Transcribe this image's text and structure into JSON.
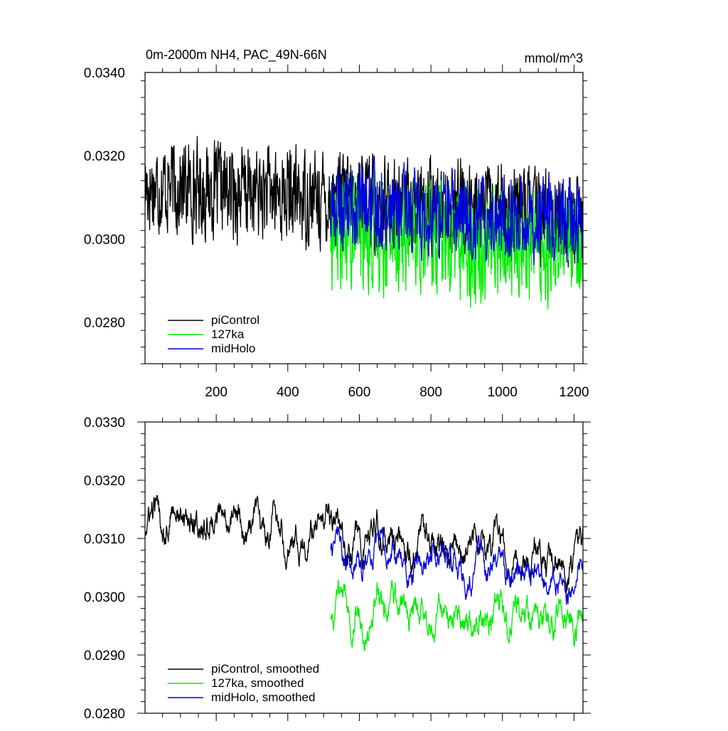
{
  "chart_data": [
    {
      "type": "line",
      "title": "0m-2000m NH4, PAC_49N-66N",
      "units": "mmol/m^3",
      "xlim": [
        1,
        1225
      ],
      "ylim": [
        0.027,
        0.034
      ],
      "xticks": [
        200,
        400,
        600,
        800,
        1000,
        1200
      ],
      "yticks": [
        0.028,
        0.03,
        0.032,
        0.034
      ],
      "ytick_labels": [
        "0.0280",
        "0.0300",
        "0.0320",
        "0.0340"
      ],
      "legend_position": "bottom-left",
      "series": [
        {
          "name": "piControl",
          "color": "#000000",
          "x_start": 1,
          "x_end": 1225,
          "base": 0.0313,
          "trend_end": 0.0305,
          "amplitude": 0.001
        },
        {
          "name": "127ka",
          "color": "#00ee00",
          "x_start": 520,
          "x_end": 1225,
          "base": 0.0302,
          "trend_end": 0.0298,
          "amplitude": 0.0012
        },
        {
          "name": "midHolo",
          "color": "#0000dd",
          "x_start": 520,
          "x_end": 1225,
          "base": 0.0308,
          "trend_end": 0.0304,
          "amplitude": 0.0009
        }
      ]
    },
    {
      "type": "line",
      "title": "",
      "units": "",
      "xlim": [
        1,
        1225
      ],
      "ylim": [
        0.028,
        0.033
      ],
      "xticks": [
        200,
        400,
        600,
        800,
        1000,
        1200
      ],
      "yticks": [
        0.028,
        0.029,
        0.03,
        0.031,
        0.032,
        0.033
      ],
      "ytick_labels": [
        "0.0280",
        "0.0290",
        "0.0300",
        "0.0310",
        "0.0320",
        "0.0330"
      ],
      "legend_position": "bottom-left",
      "series": [
        {
          "name": "piControl, smoothed",
          "color": "#000000",
          "x_start": 1,
          "x_end": 1225,
          "base": 0.0314,
          "trend_end": 0.0306,
          "amplitude": 0.0006
        },
        {
          "name": "127ka, smoothed",
          "color": "#00ee00",
          "x_start": 520,
          "x_end": 1225,
          "base": 0.0298,
          "trend_end": 0.0296,
          "amplitude": 0.0006
        },
        {
          "name": "midHolo, smoothed",
          "color": "#0000dd",
          "x_start": 520,
          "x_end": 1225,
          "base": 0.0308,
          "trend_end": 0.0303,
          "amplitude": 0.0005
        }
      ]
    }
  ]
}
